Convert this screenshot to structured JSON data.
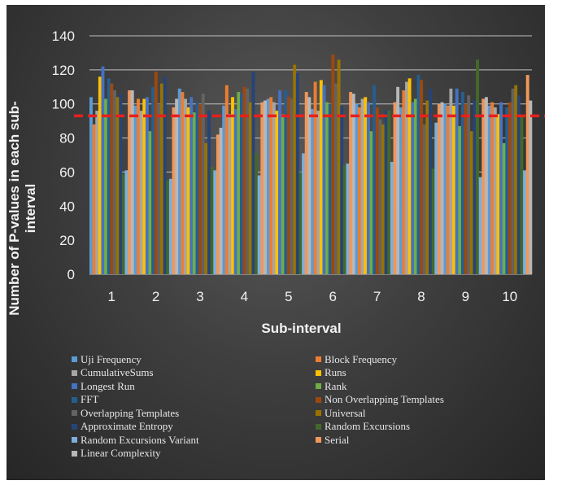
{
  "chart_data": {
    "type": "bar",
    "title": "",
    "xlabel": "Sub-interval",
    "ylabel": "Number of P-values in each sub-interval",
    "ylim": [
      0,
      140
    ],
    "yticks": [
      "0",
      "20",
      "40",
      "60",
      "80",
      "100",
      "120",
      "140"
    ],
    "categories": [
      "1",
      "2",
      "3",
      "4",
      "5",
      "6",
      "7",
      "8",
      "9",
      "10"
    ],
    "grid": true,
    "legend_position": "bottom",
    "threshold": {
      "value": 93,
      "style": "dashed",
      "color": "#e8201c"
    },
    "series": [
      {
        "name": "Uji Frequency",
        "color": "#5b9bd5",
        "values": [
          104,
          99,
          109,
          99,
          103,
          97,
          100,
          98,
          100,
          99
        ]
      },
      {
        "name": "Block Frequency",
        "color": "#ed7d31",
        "values": [
          88,
          103,
          107,
          111,
          104,
          113,
          98,
          108,
          99,
          101
        ]
      },
      {
        "name": "CumulativeSums",
        "color": "#a5a5a5",
        "values": [
          96,
          96,
          103,
          94,
          101,
          96,
          103,
          113,
          109,
          98
        ]
      },
      {
        "name": "Runs",
        "color": "#ffc000",
        "values": [
          116,
          103,
          98,
          104,
          96,
          114,
          104,
          115,
          99,
          94
        ]
      },
      {
        "name": "Longest Run",
        "color": "#4472c4",
        "values": [
          122,
          104,
          104,
          97,
          108,
          111,
          101,
          101,
          109,
          101
        ]
      },
      {
        "name": "Rank",
        "color": "#70ad47",
        "values": [
          103,
          84,
          95,
          107,
          94,
          101,
          84,
          103,
          87,
          77
        ]
      },
      {
        "name": "FFT",
        "color": "#255e91",
        "values": [
          115,
          110,
          101,
          106,
          108,
          100,
          111,
          117,
          107,
          98
        ]
      },
      {
        "name": "Non Overlapping Templates",
        "color": "#9e480e",
        "values": [
          112,
          119,
          100,
          110,
          104,
          129,
          98,
          114,
          100,
          101
        ]
      },
      {
        "name": "Overlapping Templates",
        "color": "#636363",
        "values": [
          108,
          100,
          106,
          109,
          103,
          112,
          91,
          88,
          105,
          109
        ]
      },
      {
        "name": "Universal",
        "color": "#997300",
        "values": [
          104,
          112,
          77,
          101,
          123,
          126,
          88,
          102,
          84,
          111
        ]
      },
      {
        "name": "Approximate Entropy",
        "color": "#264478",
        "values": [
          106,
          116,
          96,
          119,
          118,
          99,
          96,
          109,
          102,
          105
        ]
      },
      {
        "name": "Random Excursions",
        "color": "#43682b",
        "values": [
          59,
          55,
          63,
          71,
          60,
          64,
          96,
          62,
          126,
          93
        ]
      },
      {
        "name": "Random Excursions Variant",
        "color": "#7cafdd",
        "values": [
          61,
          56,
          61,
          58,
          71,
          65,
          66,
          89,
          57,
          61
        ]
      },
      {
        "name": "Serial",
        "color": "#f1975a",
        "values": [
          108,
          98,
          82,
          101,
          107,
          107,
          101,
          100,
          103,
          117
        ]
      },
      {
        "name": "Linear Complexity",
        "color": "#b7b7b7",
        "values": [
          108,
          103,
          86,
          102,
          104,
          106,
          110,
          101,
          104,
          102
        ]
      }
    ]
  }
}
